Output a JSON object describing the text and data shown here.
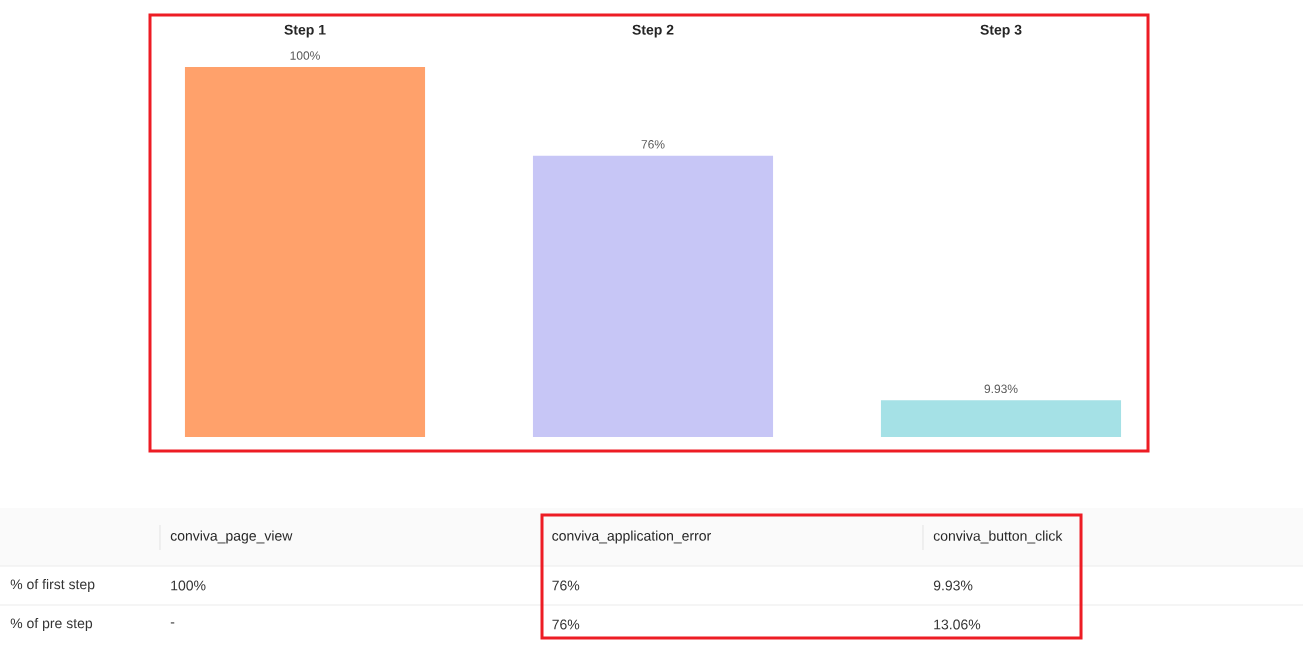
{
  "chart_data": [
    {
      "type": "bar",
      "categories": [
        "Step 1",
        "Step 2",
        "Step 3"
      ],
      "values": [
        100,
        76,
        9.93
      ],
      "colors": [
        "#ffa16b",
        "#c7c6f6",
        "#a5e1e6"
      ],
      "ylim": [
        0,
        100
      ],
      "value_labels": [
        "100%",
        "76%",
        "9.93%"
      ],
      "tick_labels": "x"
    },
    {
      "type": "other",
      "categories": [
        "conviva_page_view",
        "conviva_application_error",
        "conviva_button_click"
      ],
      "y_categories": [
        "% of first step",
        "% of pre step"
      ],
      "cell_labels": [
        [
          "100%",
          "76%",
          "9.93%"
        ],
        [
          "-",
          "76%",
          "13.06%"
        ]
      ]
    }
  ]
}
